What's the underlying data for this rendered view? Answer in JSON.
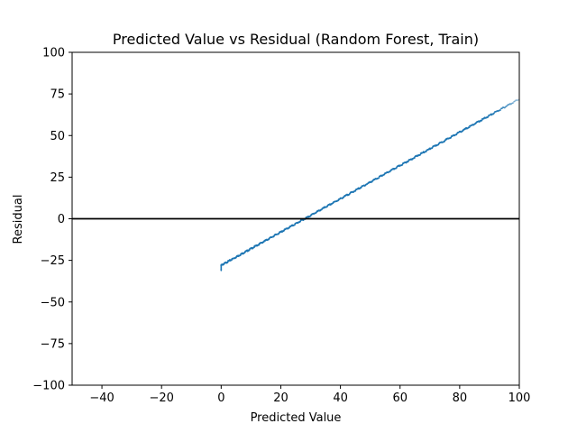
{
  "chart_data": {
    "type": "scatter",
    "title": "Predicted Value vs Residual (Random Forest, Train)",
    "xlabel": "Predicted Value",
    "ylabel": "Residual",
    "xlim": [
      -50,
      100
    ],
    "ylim": [
      -100,
      100
    ],
    "xticks": [
      -40,
      -20,
      0,
      20,
      40,
      60,
      80,
      100
    ],
    "yticks": [
      -100,
      -75,
      -50,
      -25,
      0,
      25,
      50,
      75,
      100
    ],
    "grid": false,
    "reference_line": {
      "y": 0,
      "color": "#000000"
    },
    "series": [
      {
        "color": "#1f77b4",
        "trend": {
          "x_start": 0,
          "y_start": -28,
          "x_end": 100,
          "y_end": 72
        },
        "x_range": [
          0,
          100
        ]
      }
    ]
  }
}
